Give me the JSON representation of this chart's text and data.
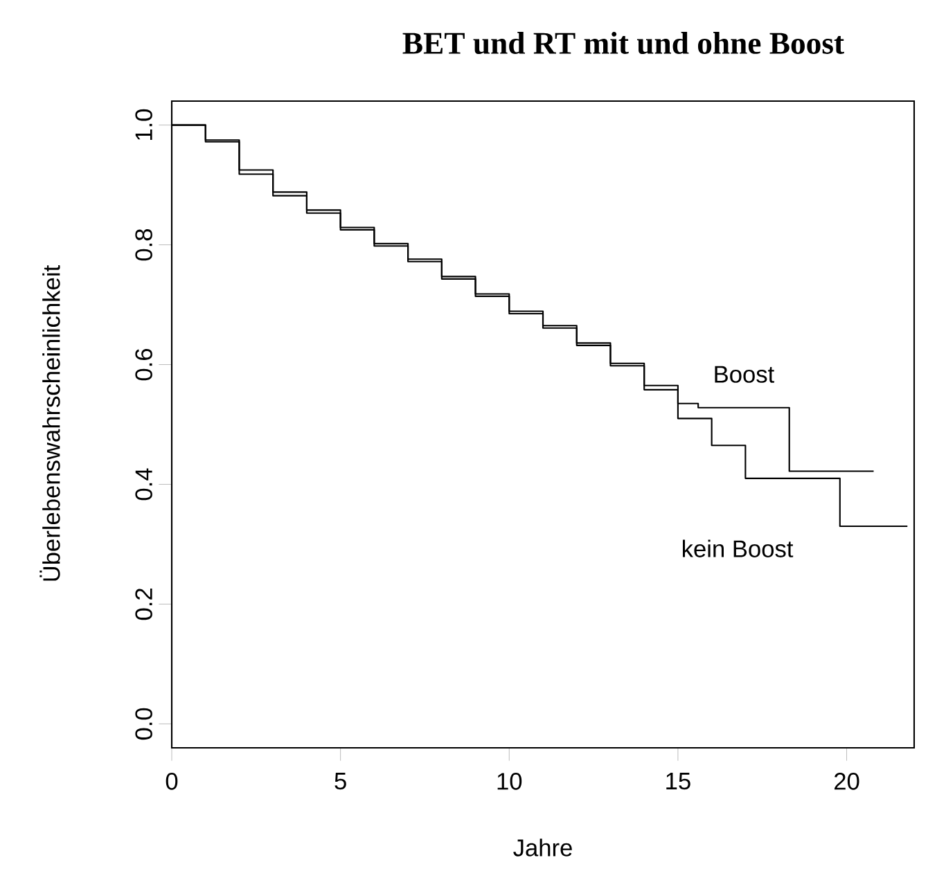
{
  "chart_data": {
    "type": "step",
    "title": "BET und RT mit und ohne Boost",
    "xlabel": "Jahre",
    "ylabel": "Überlebenswahrscheinlichkeit",
    "xlim": [
      0,
      22
    ],
    "ylim": [
      -0.04,
      1.04
    ],
    "xticks": [
      0,
      5,
      10,
      15,
      20
    ],
    "yticks": [
      {
        "value": 0,
        "label": "0.0"
      },
      0.2,
      0.4,
      0.6,
      0.8,
      {
        "value": 1,
        "label": "1.0"
      }
    ],
    "series": [
      {
        "name": "Boost",
        "color": "#000000",
        "x": [
          0,
          1,
          2,
          3,
          4,
          5,
          6,
          7,
          8,
          9,
          10,
          11,
          12,
          13,
          14,
          15,
          15.6,
          18.3,
          20.8
        ],
        "values": [
          1.0,
          0.975,
          0.925,
          0.888,
          0.858,
          0.829,
          0.802,
          0.776,
          0.747,
          0.718,
          0.689,
          0.665,
          0.636,
          0.602,
          0.565,
          0.535,
          0.528,
          0.422,
          0.422
        ]
      },
      {
        "name": "kein Boost",
        "color": "#000000",
        "x": [
          0,
          1,
          2,
          3,
          4,
          5,
          6,
          7,
          8,
          9,
          10,
          11,
          12,
          13,
          14,
          15,
          16,
          17,
          19.8,
          21.8
        ],
        "values": [
          1.0,
          0.972,
          0.918,
          0.882,
          0.853,
          0.825,
          0.798,
          0.772,
          0.743,
          0.714,
          0.685,
          0.661,
          0.632,
          0.598,
          0.558,
          0.51,
          0.465,
          0.41,
          0.33,
          0.33
        ]
      }
    ]
  }
}
